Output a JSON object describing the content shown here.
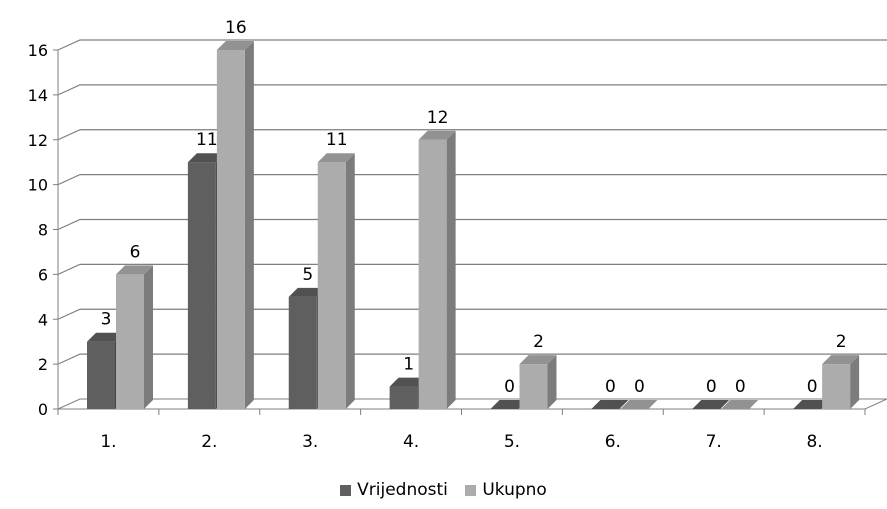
{
  "chart_data": {
    "type": "bar",
    "title": "",
    "xlabel": "",
    "ylabel": "",
    "categories": [
      "1.",
      "2.",
      "3.",
      "4.",
      "5.",
      "6.",
      "7.",
      "8."
    ],
    "series": [
      {
        "name": "Vrijednosti",
        "values": [
          3,
          11,
          5,
          1,
          0,
          0,
          0,
          0
        ],
        "color": "#5f5f5f"
      },
      {
        "name": "Ukupno",
        "values": [
          6,
          16,
          11,
          12,
          2,
          0,
          0,
          2
        ],
        "color": "#acacac"
      }
    ],
    "ylim": [
      0,
      16
    ],
    "yticks": [
      "0",
      "2",
      "4",
      "6",
      "8",
      "10",
      "12",
      "14",
      "16"
    ],
    "grid": true,
    "legend_position": "bottom",
    "style": "3d-clustered-column"
  }
}
